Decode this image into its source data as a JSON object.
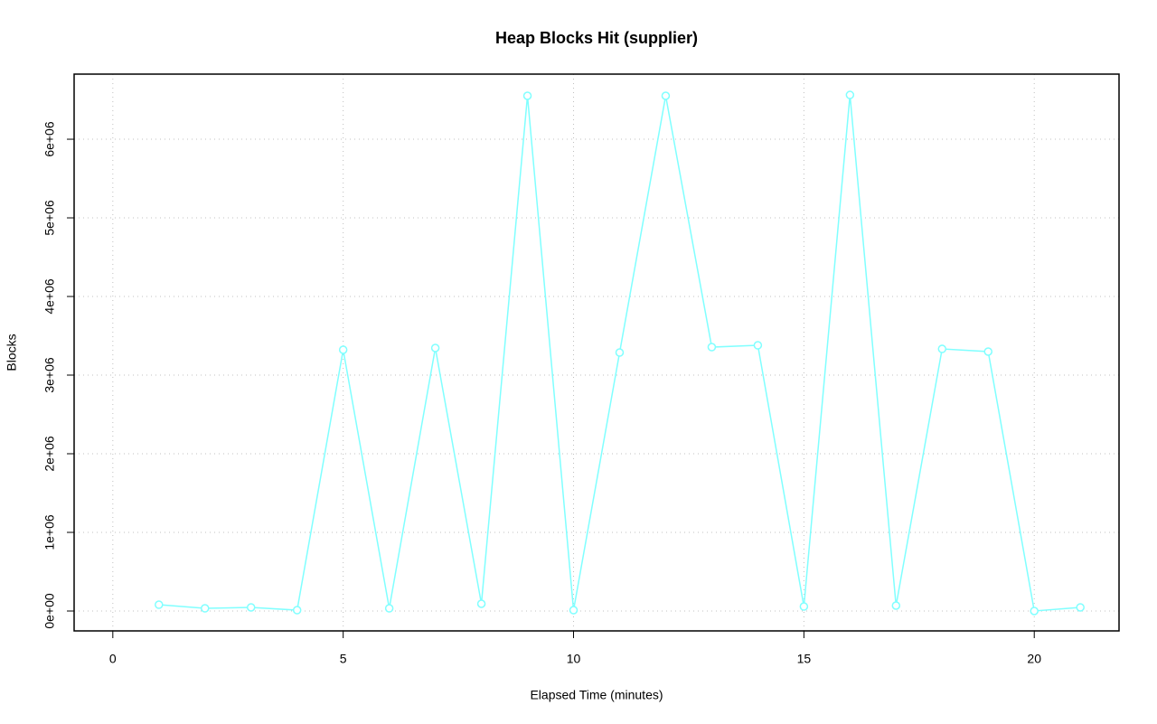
{
  "chart_data": {
    "type": "line",
    "title": "Heap Blocks Hit (supplier)",
    "x_label": "Elapsed Time (minutes)",
    "y_label": "Blocks",
    "x": [
      1,
      2,
      3,
      4,
      5,
      6,
      7,
      8,
      9,
      10,
      11,
      12,
      13,
      14,
      15,
      16,
      17,
      18,
      19,
      20,
      21
    ],
    "series": [
      {
        "name": "supplier",
        "color": "#80ffff",
        "values": [
          80000,
          34000,
          46000,
          11000,
          3322000,
          34000,
          3345000,
          92000,
          6552000,
          11000,
          3287000,
          6552000,
          3356000,
          3379000,
          57000,
          6563000,
          69000,
          3333000,
          3299000,
          0,
          46000
        ]
      }
    ],
    "xlim": [
      -0.84,
      21.84
    ],
    "xticks": [
      0,
      5,
      10,
      15,
      20
    ],
    "ylim": [
      -253000,
      6828000
    ],
    "yticks": [
      {
        "value": 0,
        "label": "0e+00"
      },
      {
        "value": 1000000,
        "label": "1e+06"
      },
      {
        "value": 2000000,
        "label": "2e+06"
      },
      {
        "value": 3000000,
        "label": "3e+06"
      },
      {
        "value": 4000000,
        "label": "4e+06"
      },
      {
        "value": 5000000,
        "label": "5e+06"
      },
      {
        "value": 6000000,
        "label": "6e+06"
      }
    ],
    "grid": true
  }
}
